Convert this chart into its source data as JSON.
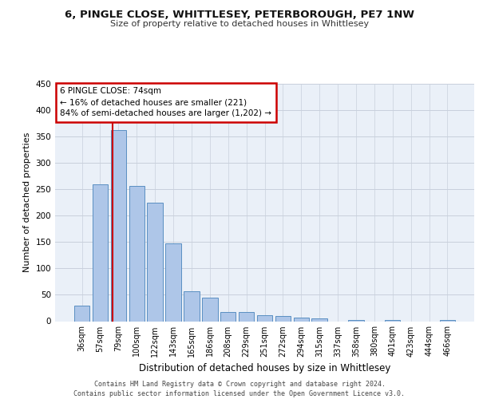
{
  "title1": "6, PINGLE CLOSE, WHITTLESEY, PETERBOROUGH, PE7 1NW",
  "title2": "Size of property relative to detached houses in Whittlesey",
  "xlabel": "Distribution of detached houses by size in Whittlesey",
  "ylabel": "Number of detached properties",
  "categories": [
    "36sqm",
    "57sqm",
    "79sqm",
    "100sqm",
    "122sqm",
    "143sqm",
    "165sqm",
    "186sqm",
    "208sqm",
    "229sqm",
    "251sqm",
    "272sqm",
    "294sqm",
    "315sqm",
    "337sqm",
    "358sqm",
    "380sqm",
    "401sqm",
    "423sqm",
    "444sqm",
    "466sqm"
  ],
  "values": [
    30,
    260,
    362,
    256,
    225,
    148,
    57,
    45,
    18,
    18,
    11,
    10,
    7,
    5,
    0,
    3,
    0,
    3,
    0,
    0,
    3
  ],
  "bar_color": "#aec6e8",
  "bar_edge_color": "#5a8fc2",
  "red_line_color": "#cc0000",
  "red_line_x": 1.68,
  "annotation_text": "6 PINGLE CLOSE: 74sqm\n← 16% of detached houses are smaller (221)\n84% of semi-detached houses are larger (1,202) →",
  "annotation_box_facecolor": "#ffffff",
  "annotation_box_edgecolor": "#cc0000",
  "ylim": [
    0,
    450
  ],
  "yticks": [
    0,
    50,
    100,
    150,
    200,
    250,
    300,
    350,
    400,
    450
  ],
  "background_color": "#eaf0f8",
  "grid_color": "#c8d0dc",
  "footer": "Contains HM Land Registry data © Crown copyright and database right 2024.\nContains public sector information licensed under the Open Government Licence v3.0.",
  "title1_fontsize": 9.5,
  "title2_fontsize": 8.0,
  "xlabel_fontsize": 8.5,
  "ylabel_fontsize": 8.0,
  "tick_fontsize": 7.0,
  "annotation_fontsize": 7.5,
  "footer_fontsize": 6.0
}
